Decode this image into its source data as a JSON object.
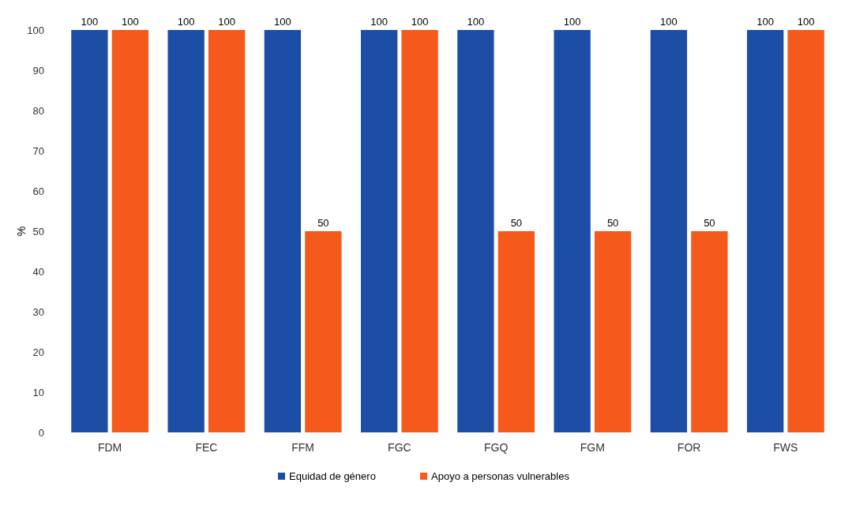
{
  "chart_data": {
    "type": "bar",
    "ylabel": "%",
    "categories": [
      "FDM",
      "FEC",
      "FFM",
      "FGC",
      "FGQ",
      "FGM",
      "FOR",
      "FWS"
    ],
    "series": [
      {
        "name": "Equidad de género",
        "color": "#1d4ea6",
        "values": [
          100,
          100,
          100,
          100,
          100,
          100,
          100,
          100
        ]
      },
      {
        "name": "Apoyo a personas vulnerables",
        "color": "#f55a1c",
        "values": [
          100,
          100,
          50,
          100,
          50,
          50,
          50,
          100
        ]
      }
    ],
    "ylim": [
      0,
      100
    ],
    "yticks": [
      0,
      10,
      20,
      30,
      40,
      50,
      60,
      70,
      80,
      90,
      100
    ],
    "data_labels": true,
    "legend": "bottom"
  }
}
